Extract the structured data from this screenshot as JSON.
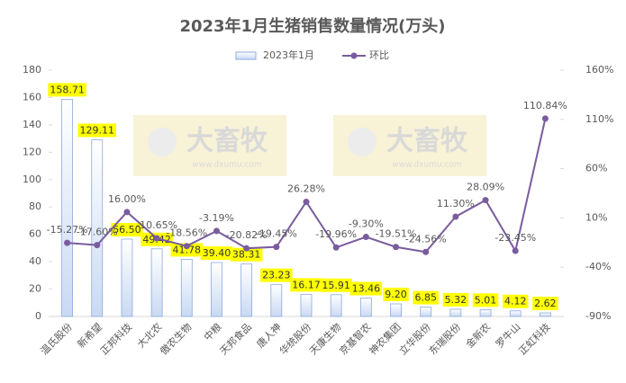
{
  "chart_data": {
    "type": "bar-line",
    "title": "2023年1月生猪销售数量情况(万头)",
    "categories": [
      "温氏股份",
      "新希望",
      "正邦科技",
      "大北农",
      "傲农生物",
      "中粮",
      "天邦食品",
      "唐人神",
      "华统股份",
      "天康生物",
      "京基智农",
      "神农集团",
      "立华股份",
      "东瑞股份",
      "金新农",
      "罗牛山",
      "正虹科技"
    ],
    "series": [
      {
        "name": "2023年1月",
        "type": "bar",
        "color": "#8eaadb",
        "values": [
          158.71,
          129.11,
          56.5,
          49.42,
          41.78,
          39.4,
          38.31,
          23.23,
          16.17,
          15.91,
          13.46,
          9.2,
          6.85,
          5.32,
          5.01,
          4.12,
          2.62
        ],
        "value_labels": [
          "158.71",
          "129.11",
          "56.50",
          "49.42",
          "41.78",
          "39.40",
          "38.31",
          "23.23",
          "16.17",
          "15.91",
          "13.46",
          "9.20",
          "6.85",
          "5.32",
          "5.01",
          "4.12",
          "2.62"
        ]
      },
      {
        "name": "环比",
        "type": "line",
        "axis": "y2",
        "color": "#7a5c9e",
        "values": [
          -15.27,
          -17.6,
          16.0,
          -10.65,
          -18.56,
          -3.19,
          -20.82,
          -19.45,
          26.28,
          -19.96,
          -9.3,
          -19.51,
          -24.56,
          11.3,
          28.09,
          -23.45,
          110.84
        ],
        "value_labels": [
          "-15.27%",
          "-17.60%",
          "16.00%",
          "-10.65%",
          "-18.56%",
          "-3.19%",
          "-20.82%",
          "-19.45%",
          "26.28%",
          "-19.96%",
          "-9.30%",
          "-19.51%",
          "-24.56%",
          "11.30%",
          "28.09%",
          "-23.45%",
          "110.84%"
        ]
      }
    ],
    "ylim": [
      0,
      180
    ],
    "yticks": [
      0,
      20,
      40,
      60,
      80,
      100,
      120,
      140,
      160,
      180
    ],
    "y2lim": [
      -90,
      160
    ],
    "y2ticks": [
      {
        "value": -90,
        "label": "-90%"
      },
      {
        "value": -40,
        "label": "-40%"
      },
      {
        "value": 10,
        "label": "10%"
      },
      {
        "value": 60,
        "label": "60%"
      },
      {
        "value": 110,
        "label": "110%"
      },
      {
        "value": 160,
        "label": "160%"
      }
    ],
    "legend": "top",
    "watermark": {
      "text": "大畜牧",
      "url": "www.dxumu.com"
    }
  }
}
